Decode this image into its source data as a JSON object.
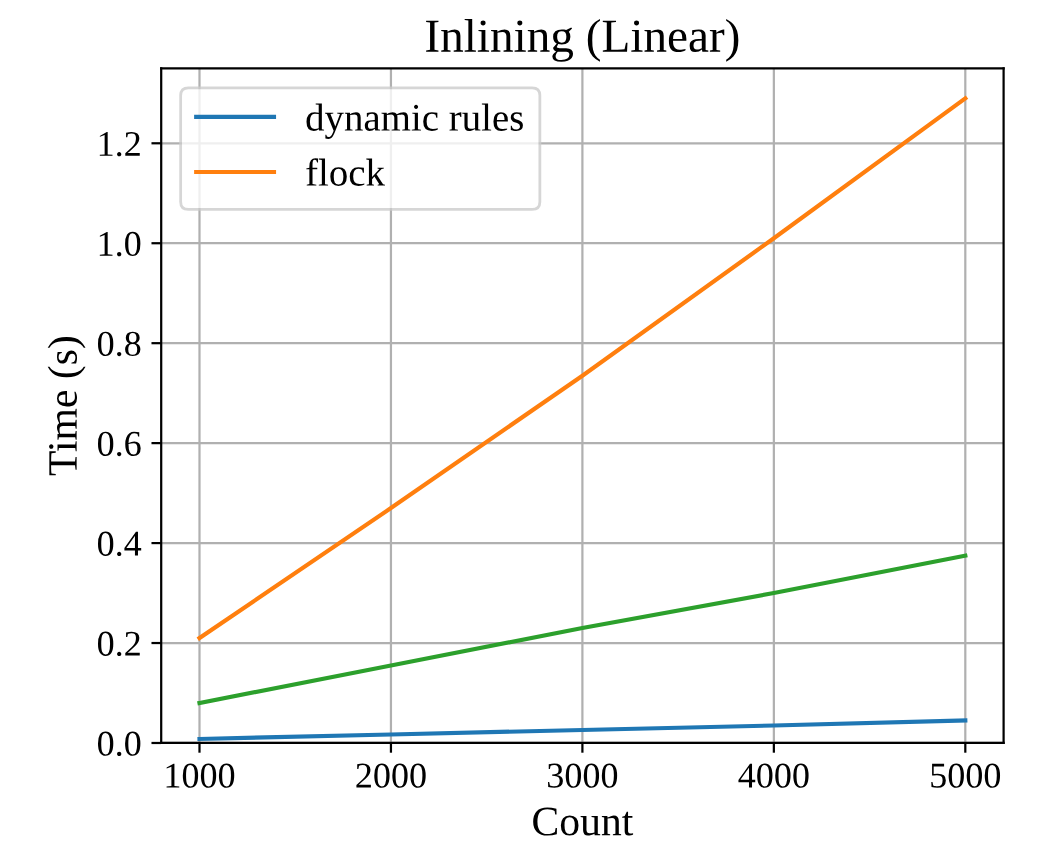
{
  "chart_data": {
    "type": "line",
    "title": "Inlining (Linear)",
    "xlabel": "Count",
    "ylabel": "Time (s)",
    "x": [
      1000,
      2000,
      3000,
      4000,
      5000
    ],
    "series": [
      {
        "name": "dynamic rules",
        "color": "#1f77b4",
        "values": [
          0.008,
          0.017,
          0.026,
          0.035,
          0.045
        ]
      },
      {
        "name": "flock",
        "color": "#ff7f0e",
        "values": [
          0.21,
          0.47,
          0.735,
          1.01,
          1.29
        ]
      },
      {
        "color": "#2ca02c",
        "values": [
          0.08,
          0.155,
          0.23,
          0.3,
          0.375
        ]
      }
    ],
    "xlim": [
      800,
      5200
    ],
    "xticks": [
      1000,
      2000,
      3000,
      4000,
      5000
    ],
    "ylim": [
      0,
      1.35
    ],
    "yticks": [
      {
        "value": 0,
        "label": "0.0"
      },
      0.2,
      0.4,
      0.6,
      0.8,
      {
        "value": 1,
        "label": "1.0"
      },
      1.2
    ],
    "grid": true,
    "legend": "top left",
    "marker": "none",
    "line_style": "solid"
  }
}
